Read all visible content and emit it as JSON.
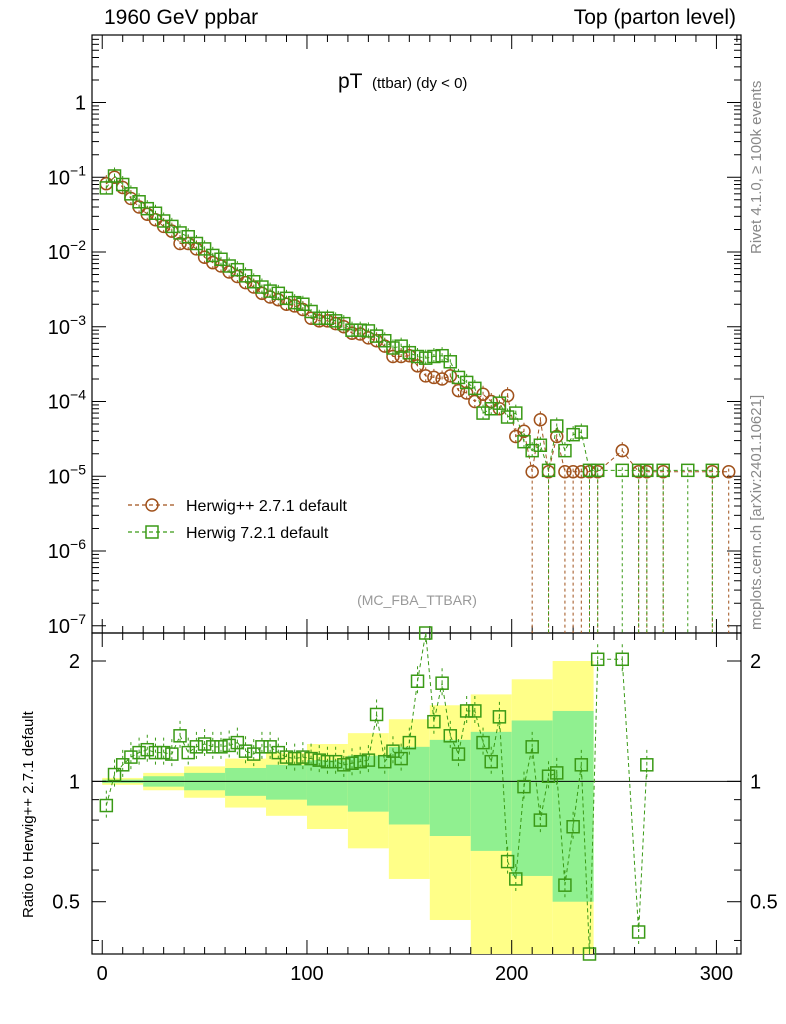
{
  "header": {
    "left": "1960 GeV ppbar",
    "right": "Top (parton level)"
  },
  "side": {
    "rivet": "Rivet 4.1.0, ≥ 100k events",
    "mcplots": "mcplots.cern.ch [arXiv:2401.10621]"
  },
  "colors": {
    "herwigpp": "#a0511b",
    "herwig7": "#3a9a16",
    "band_inner": "#90f090",
    "band_outer": "#ffff88"
  },
  "chart_data": [
    {
      "type": "scatter",
      "panel": "main",
      "title": "pT",
      "title_sub": "(ttbar) (dy < 0)",
      "watermark": "(MC_FBA_TTBAR)",
      "yscale": "log",
      "xlim": [
        -5,
        312
      ],
      "ylim": [
        8e-08,
        8
      ],
      "ytick_labels": [
        {
          "v": 1,
          "base": "1",
          "exp": ""
        },
        {
          "v": 0.1,
          "base": "10",
          "exp": "−1"
        },
        {
          "v": 0.01,
          "base": "10",
          "exp": "−2"
        },
        {
          "v": 0.001,
          "base": "10",
          "exp": "−3"
        },
        {
          "v": 0.0001,
          "base": "10",
          "exp": "−4"
        },
        {
          "v": 1e-05,
          "base": "10",
          "exp": "−5"
        },
        {
          "v": 1e-06,
          "base": "10",
          "exp": "−6"
        },
        {
          "v": 1e-07,
          "base": "10",
          "exp": "−7"
        }
      ],
      "legend": [
        "Herwig++ 2.7.1 default",
        "Herwig 7.2.1 default"
      ],
      "legend_position": "lower-left",
      "series": [
        {
          "name": "Herwig++ 2.7.1 default",
          "marker": "circle",
          "x": [
            2,
            6,
            10,
            14,
            18,
            22,
            26,
            30,
            34,
            38,
            42,
            46,
            50,
            54,
            58,
            62,
            66,
            70,
            74,
            78,
            82,
            86,
            90,
            94,
            98,
            102,
            106,
            110,
            114,
            118,
            122,
            126,
            130,
            134,
            138,
            142,
            146,
            150,
            154,
            158,
            162,
            166,
            170,
            174,
            178,
            182,
            186,
            190,
            194,
            198,
            202,
            206,
            210,
            214,
            218,
            222,
            226,
            230,
            234,
            238,
            242,
            254,
            262,
            266,
            274,
            298,
            306
          ],
          "y": [
            0.082,
            0.1,
            0.073,
            0.052,
            0.04,
            0.032,
            0.027,
            0.022,
            0.019,
            0.013,
            0.013,
            0.011,
            0.0085,
            0.0072,
            0.0065,
            0.0054,
            0.0047,
            0.0039,
            0.0034,
            0.0028,
            0.0025,
            0.0023,
            0.002,
            0.0019,
            0.0017,
            0.0013,
            0.0012,
            0.0012,
            0.0011,
            0.001,
            0.00082,
            0.0008,
            0.00071,
            0.00065,
            0.00055,
            0.0004,
            0.0004,
            0.00041,
            0.0003,
            0.00022,
            0.00021,
            0.0002,
            0.00022,
            0.00014,
            0.00013,
            0.0001,
            0.000125,
            0.0001,
            8e-05,
            0.00012,
            3.4e-05,
            4e-05,
            1.15e-05,
            5.7e-05,
            1.15e-05,
            3.4e-05,
            1.15e-05,
            1.15e-05,
            1.15e-05,
            1.15e-05,
            1.15e-05,
            2.2e-05,
            1.15e-05,
            1.15e-05,
            1.15e-05,
            1.15e-05,
            1.15e-05
          ]
        },
        {
          "name": "Herwig 7.2.1 default",
          "marker": "square",
          "x": [
            2,
            6,
            10,
            14,
            18,
            22,
            26,
            30,
            34,
            38,
            42,
            46,
            50,
            54,
            58,
            62,
            66,
            70,
            74,
            78,
            82,
            86,
            90,
            94,
            98,
            102,
            106,
            110,
            114,
            118,
            122,
            126,
            130,
            134,
            138,
            142,
            146,
            150,
            154,
            158,
            162,
            166,
            170,
            174,
            178,
            182,
            186,
            190,
            194,
            198,
            202,
            206,
            210,
            214,
            218,
            222,
            226,
            230,
            234,
            238,
            242,
            254,
            262,
            266,
            274,
            286,
            298
          ],
          "y": [
            0.072,
            0.104,
            0.08,
            0.06,
            0.047,
            0.038,
            0.033,
            0.026,
            0.022,
            0.018,
            0.016,
            0.013,
            0.011,
            0.009,
            0.008,
            0.0065,
            0.0058,
            0.0048,
            0.004,
            0.0034,
            0.003,
            0.0028,
            0.0024,
            0.0021,
            0.002,
            0.0016,
            0.0013,
            0.0013,
            0.0012,
            0.0011,
            0.0009,
            0.0009,
            0.00088,
            0.00075,
            0.00065,
            0.00052,
            0.00055,
            0.00045,
            0.0004,
            0.00038,
            0.0004,
            0.00041,
            0.00034,
            0.00021,
            0.00018,
            0.00015,
            7e-05,
            8e-05,
            9.5e-05,
            6.2e-05,
            7e-05,
            2.9e-05,
            2.2e-05,
            2.6e-05,
            1.2e-05,
            4.7e-05,
            2.2e-05,
            3.6e-05,
            3.9e-05,
            1.2e-05,
            1.2e-05,
            1.2e-05,
            1.2e-05,
            1.2e-05,
            1.2e-05,
            1.2e-05,
            1.2e-05
          ]
        }
      ]
    },
    {
      "type": "scatter",
      "panel": "ratio",
      "ylabel": "Ratio to Herwig++ 2.7.1 default",
      "yscale": "log",
      "xlim": [
        -5,
        312
      ],
      "ylim": [
        0.37,
        2.35
      ],
      "xtick_labels": [
        0,
        100,
        200,
        300
      ],
      "ytick_labels": [
        0.5,
        1,
        2
      ],
      "bands": {
        "x_edges": [
          0,
          20,
          40,
          60,
          80,
          100,
          120,
          140,
          160,
          180,
          200,
          220,
          240
        ],
        "inner": [
          0.01,
          0.03,
          0.05,
          0.08,
          0.1,
          0.13,
          0.16,
          0.22,
          0.27,
          0.33,
          0.42,
          0.5
        ],
        "outer": [
          0.02,
          0.05,
          0.09,
          0.14,
          0.18,
          0.24,
          0.32,
          0.43,
          0.55,
          0.65,
          0.8,
          1.0
        ]
      },
      "series": [
        {
          "name": "Herwig 7.2.1 default",
          "x": [
            2,
            6,
            10,
            14,
            18,
            22,
            26,
            30,
            34,
            38,
            42,
            46,
            50,
            54,
            58,
            62,
            66,
            70,
            74,
            78,
            82,
            86,
            90,
            94,
            98,
            102,
            106,
            110,
            114,
            118,
            122,
            126,
            130,
            134,
            138,
            142,
            146,
            150,
            154,
            158,
            162,
            166,
            170,
            174,
            178,
            182,
            186,
            190,
            194,
            198,
            202,
            206,
            210,
            214,
            218,
            222,
            226,
            230,
            234,
            238,
            242,
            254,
            262,
            266
          ],
          "y": [
            0.87,
            1.04,
            1.1,
            1.15,
            1.18,
            1.2,
            1.18,
            1.18,
            1.17,
            1.3,
            1.18,
            1.22,
            1.24,
            1.22,
            1.22,
            1.23,
            1.25,
            1.19,
            1.17,
            1.22,
            1.22,
            1.18,
            1.15,
            1.14,
            1.15,
            1.14,
            1.13,
            1.12,
            1.12,
            1.1,
            1.11,
            1.12,
            1.13,
            1.47,
            1.12,
            1.19,
            1.14,
            1.25,
            1.78,
            2.4,
            1.41,
            1.76,
            1.3,
            1.17,
            1.5,
            1.5,
            1.25,
            1.12,
            1.45,
            0.63,
            0.57,
            0.97,
            1.22,
            0.8,
            1.03,
            1.05,
            0.55,
            0.77,
            1.1,
            0.35,
            2.02,
            2.02,
            0.42,
            1.1
          ]
        }
      ]
    }
  ]
}
